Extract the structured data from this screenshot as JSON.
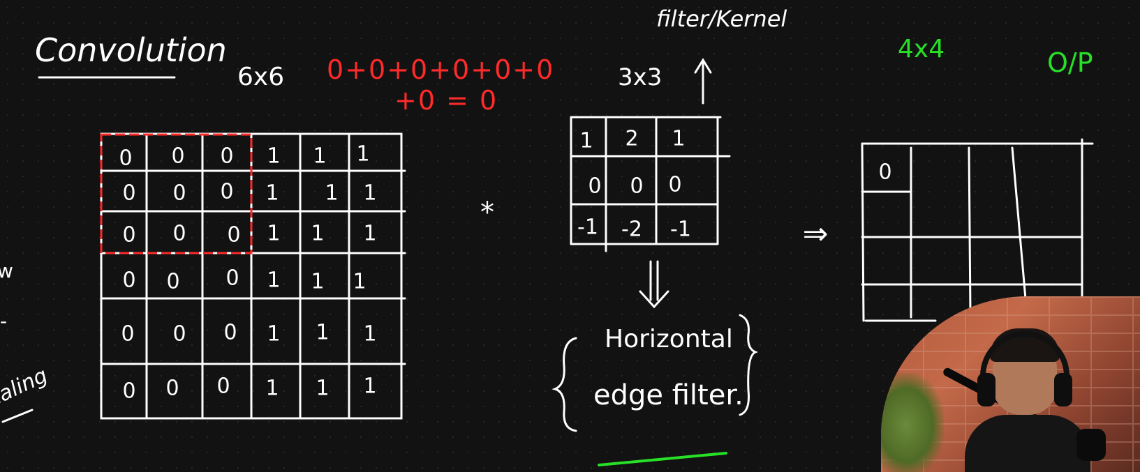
{
  "title": "Convolution",
  "input": {
    "size_label": "6x6",
    "matrix": [
      [
        "0",
        "0",
        "0",
        "1",
        "1",
        "1"
      ],
      [
        "0",
        "0",
        "0",
        "1",
        "1",
        "1"
      ],
      [
        "0",
        "0",
        "0",
        "1",
        "1",
        "1"
      ],
      [
        "0",
        "0",
        "0",
        "1",
        "1",
        "1"
      ],
      [
        "0",
        "0",
        "0",
        "1",
        "1",
        "1"
      ],
      [
        "0",
        "0",
        "0",
        "1",
        "1",
        "1"
      ]
    ]
  },
  "calculation": {
    "line1": "0+0+0+0+0+0",
    "line2": "+0 = 0"
  },
  "operator": "*",
  "kernel": {
    "label": "filter/Kernel",
    "size_label": "3x3",
    "matrix": [
      [
        "1",
        "2",
        "1"
      ],
      [
        "0",
        "0",
        "0"
      ],
      [
        "-1",
        "-2",
        "-1"
      ]
    ],
    "description_line1": "Horizontal",
    "description_line2": "edge filter."
  },
  "arrow_symbol": "⇒",
  "output": {
    "size_label": "4x4",
    "label": "O/P",
    "first_value": "0"
  },
  "margin_notes": [
    "w",
    "-",
    "caling"
  ],
  "colors": {
    "chalk": "#ffffff",
    "highlight": "#ff2a2a",
    "output_labels": "#27e027",
    "underline": "#27e027"
  }
}
